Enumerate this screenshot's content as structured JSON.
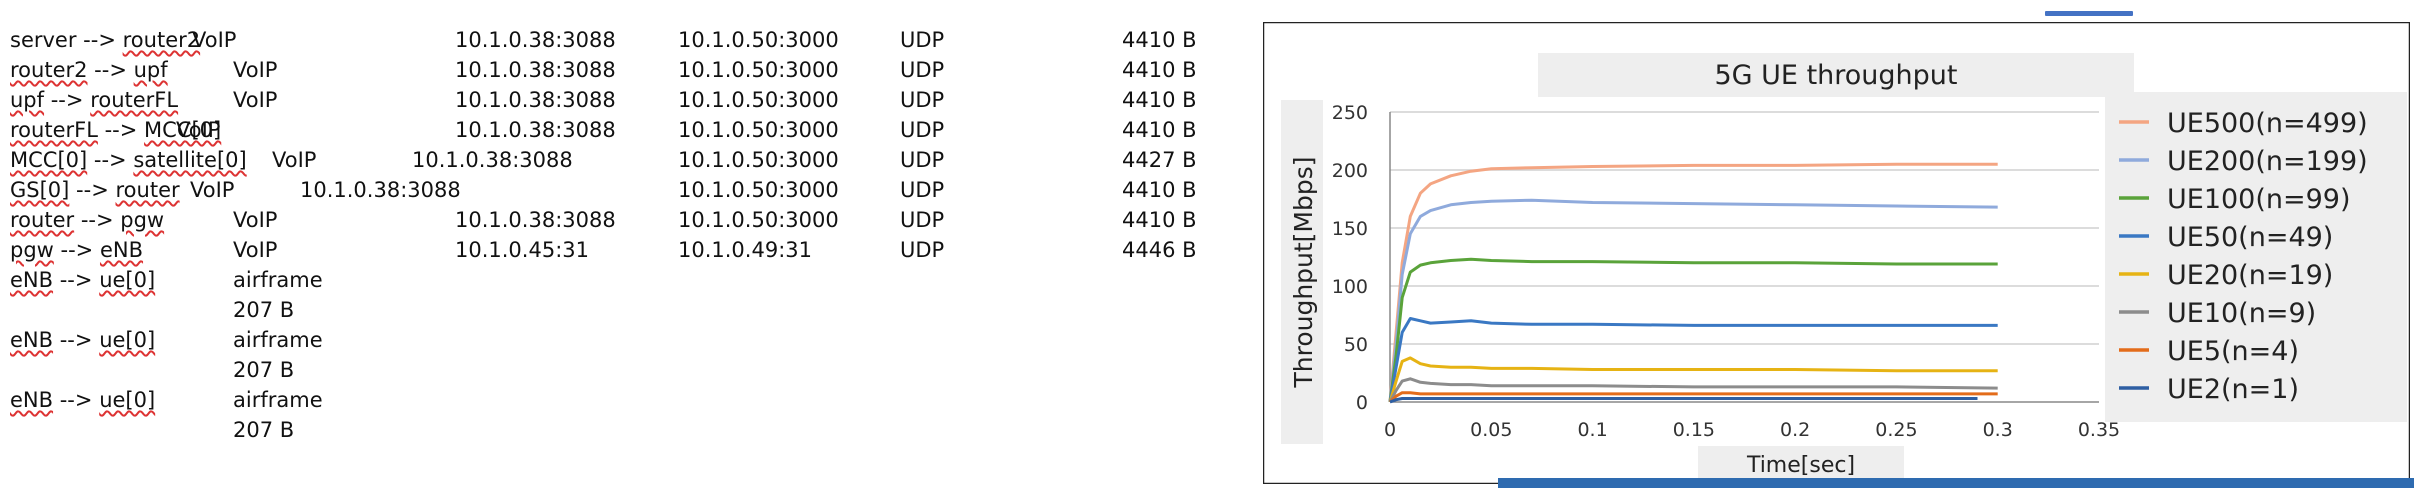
{
  "log_rows": [
    {
      "link": "server --> router2",
      "app": "VoIP",
      "src": "10.1.0.38:3088",
      "dst": "10.1.0.50:3000",
      "proto": "UDP",
      "size": "4410 B"
    },
    {
      "link": "router2 --> upf",
      "app": "VoIP",
      "src": "10.1.0.38:3088",
      "dst": "10.1.0.50:3000",
      "proto": "UDP",
      "size": "4410 B"
    },
    {
      "link": "upf --> routerFL",
      "app": "VoIP",
      "src": "10.1.0.38:3088",
      "dst": "10.1.0.50:3000",
      "proto": "UDP",
      "size": "4410 B"
    },
    {
      "link": "routerFL --> MCC[0]",
      "app": "VoIP",
      "src": "10.1.0.38:3088",
      "dst": "10.1.0.50:3000",
      "proto": "UDP",
      "size": "4410 B"
    },
    {
      "link": "MCC[0] --> satellite[0]",
      "app": "VoIP",
      "src": "10.1.0.38:3088",
      "dst": "10.1.0.50:3000",
      "proto": "UDP",
      "size": "4427 B"
    },
    {
      "link": "GS[0] --> router",
      "app": "VoIP",
      "src": "10.1.0.38:3088",
      "dst": "10.1.0.50:3000",
      "proto": "UDP",
      "size": "4410 B"
    },
    {
      "link": "router --> pgw",
      "app": "VoIP",
      "src": "10.1.0.38:3088",
      "dst": "10.1.0.50:3000",
      "proto": "UDP",
      "size": "4410 B"
    },
    {
      "link": "pgw --> eNB",
      "app": "VoIP",
      "src": "10.1.0.45:31",
      "dst": "10.1.0.49:31",
      "proto": "UDP",
      "size": "4446 B"
    },
    {
      "link": "eNB --> ue[0]",
      "app": "airframe",
      "size": "207 B"
    },
    {
      "link": "eNB --> ue[0]",
      "app": "airframe",
      "size": "207 B"
    },
    {
      "link": "eNB --> ue[0]",
      "app": "airframe",
      "size": "207 B"
    }
  ],
  "chart_data": {
    "type": "line",
    "title": "5G UE throughput",
    "xlabel": "Time[sec]",
    "ylabel": "Throughput[Mbps]",
    "xlim": [
      0,
      0.35
    ],
    "ylim": [
      0,
      250
    ],
    "x_ticks": [
      "0",
      "0.05",
      "0.1",
      "0.15",
      "0.2",
      "0.25",
      "0.3",
      "0.35"
    ],
    "y_ticks": [
      "0",
      "50",
      "100",
      "150",
      "200",
      "250"
    ],
    "grid": "horizontal",
    "legend_position": "right",
    "series": [
      {
        "name": "UE500(n=499)",
        "color": "#f4a582",
        "x": [
          0,
          0.003,
          0.006,
          0.01,
          0.015,
          0.02,
          0.03,
          0.04,
          0.05,
          0.07,
          0.1,
          0.15,
          0.2,
          0.25,
          0.3
        ],
        "y": [
          0,
          60,
          120,
          160,
          180,
          188,
          195,
          199,
          201,
          202,
          203,
          204,
          204,
          205,
          205
        ]
      },
      {
        "name": "UE200(n=199)",
        "color": "#8faadc",
        "x": [
          0,
          0.003,
          0.006,
          0.01,
          0.015,
          0.02,
          0.03,
          0.04,
          0.05,
          0.07,
          0.1,
          0.15,
          0.2,
          0.25,
          0.3
        ],
        "y": [
          0,
          50,
          110,
          145,
          160,
          165,
          170,
          172,
          173,
          174,
          172,
          171,
          170,
          169,
          168
        ]
      },
      {
        "name": "UE100(n=99)",
        "color": "#5aa33a",
        "x": [
          0,
          0.003,
          0.006,
          0.01,
          0.015,
          0.02,
          0.03,
          0.04,
          0.05,
          0.07,
          0.1,
          0.15,
          0.2,
          0.25,
          0.3
        ],
        "y": [
          0,
          40,
          90,
          112,
          118,
          120,
          122,
          123,
          122,
          121,
          121,
          120,
          120,
          119,
          119
        ]
      },
      {
        "name": "UE50(n=49)",
        "color": "#3a78c3",
        "x": [
          0,
          0.003,
          0.006,
          0.01,
          0.015,
          0.02,
          0.03,
          0.04,
          0.05,
          0.07,
          0.1,
          0.15,
          0.2,
          0.25,
          0.3
        ],
        "y": [
          0,
          30,
          60,
          72,
          70,
          68,
          69,
          70,
          68,
          67,
          67,
          66,
          66,
          66,
          66
        ]
      },
      {
        "name": "UE20(n=19)",
        "color": "#e6b314",
        "x": [
          0,
          0.003,
          0.006,
          0.01,
          0.015,
          0.02,
          0.03,
          0.04,
          0.05,
          0.07,
          0.1,
          0.15,
          0.2,
          0.25,
          0.3
        ],
        "y": [
          0,
          18,
          35,
          38,
          33,
          31,
          30,
          30,
          29,
          29,
          28,
          28,
          28,
          27,
          27
        ]
      },
      {
        "name": "UE10(n=9)",
        "color": "#8c8c8c",
        "x": [
          0,
          0.003,
          0.006,
          0.01,
          0.015,
          0.02,
          0.03,
          0.04,
          0.05,
          0.07,
          0.1,
          0.15,
          0.2,
          0.25,
          0.3
        ],
        "y": [
          0,
          10,
          18,
          20,
          17,
          16,
          15,
          15,
          14,
          14,
          14,
          13,
          13,
          13,
          12
        ]
      },
      {
        "name": "UE5(n=4)",
        "color": "#e36c1a",
        "x": [
          0,
          0.003,
          0.006,
          0.01,
          0.015,
          0.02,
          0.03,
          0.05,
          0.1,
          0.15,
          0.2,
          0.25,
          0.3
        ],
        "y": [
          0,
          5,
          8,
          8,
          7,
          7,
          7,
          7,
          7,
          7,
          7,
          7,
          7
        ]
      },
      {
        "name": "UE2(n=1)",
        "color": "#2e5fa3",
        "x": [
          0,
          0.003,
          0.006,
          0.01,
          0.02,
          0.05,
          0.1,
          0.15,
          0.2,
          0.25,
          0.29
        ],
        "y": [
          0,
          2,
          3,
          3,
          3,
          3,
          3,
          3,
          3,
          3,
          3
        ]
      }
    ]
  }
}
